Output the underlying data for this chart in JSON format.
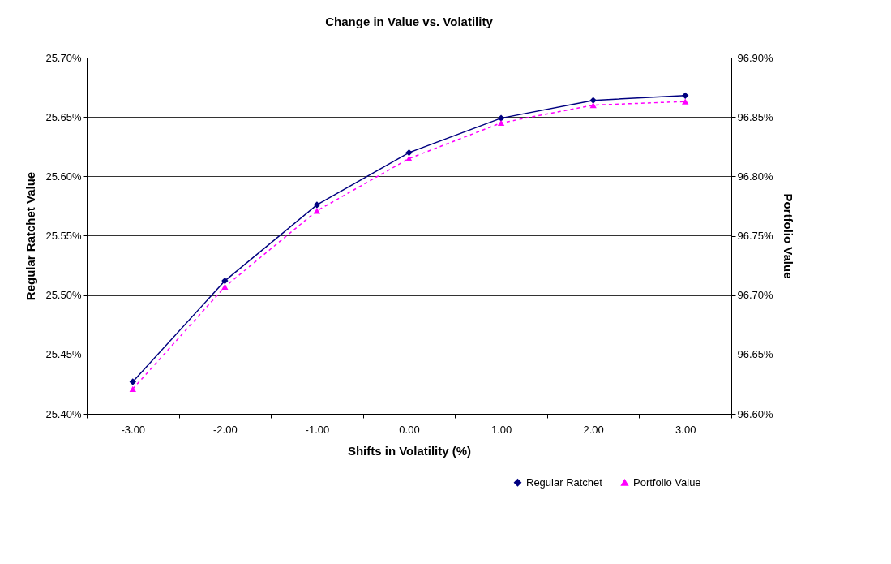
{
  "chart_data": {
    "type": "line",
    "title": "Change in Value vs.  Volatility",
    "xlabel": "Shifts in Volatility (%)",
    "ylabel": "Regular Ratchet Value",
    "y2label": "Portfolio Value",
    "categories": [
      "-3.00",
      "-2.00",
      "-1.00",
      "0.00",
      "1.00",
      "2.00",
      "3.00"
    ],
    "series": [
      {
        "name": "Regular Ratchet",
        "color": "#000080",
        "marker": "diamond",
        "line_style": "solid",
        "values": [
          25.427,
          25.512,
          25.576,
          25.62,
          25.649,
          25.664,
          25.668
        ]
      },
      {
        "name": "Portfolio Value",
        "color": "#ff00ff",
        "marker": "triangle",
        "line_style": "dashed",
        "axis": "y2",
        "values": [
          96.621,
          96.707,
          96.771,
          96.815,
          96.845,
          96.86,
          96.863
        ]
      }
    ],
    "ylim": [
      25.4,
      25.7
    ],
    "yticks": [
      {
        "value": 25.4,
        "label": "25.40%"
      },
      {
        "value": 25.45,
        "label": "25.45%"
      },
      {
        "value": 25.5,
        "label": "25.50%"
      },
      {
        "value": 25.55,
        "label": "25.55%"
      },
      {
        "value": 25.6,
        "label": "25.60%"
      },
      {
        "value": 25.65,
        "label": "25.65%"
      },
      {
        "value": 25.7,
        "label": "25.70%"
      }
    ],
    "y2lim": [
      96.6,
      96.9
    ],
    "y2ticks": [
      {
        "value": 96.6,
        "label": "96.60%"
      },
      {
        "value": 96.65,
        "label": "96.65%"
      },
      {
        "value": 96.7,
        "label": "96.70%"
      },
      {
        "value": 96.75,
        "label": "96.75%"
      },
      {
        "value": 96.8,
        "label": "96.80%"
      },
      {
        "value": 96.85,
        "label": "96.85%"
      },
      {
        "value": 96.9,
        "label": "96.90%"
      }
    ],
    "grid": "y",
    "legend": "bottom right"
  }
}
